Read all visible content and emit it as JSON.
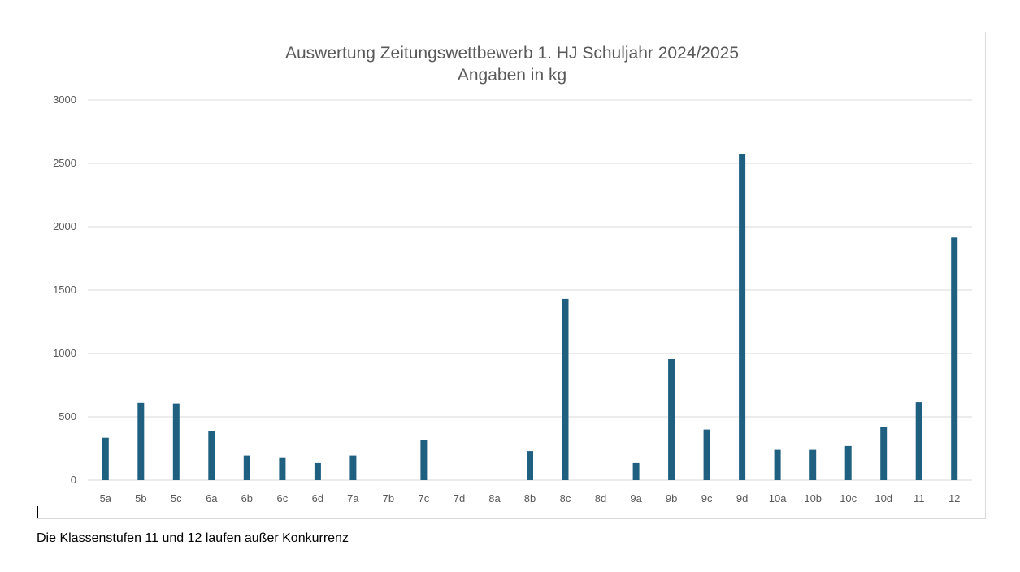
{
  "chart_data": {
    "type": "bar",
    "title": "Auswertung Zeitungswettbewerb  1. HJ Schuljahr 2024/2025",
    "subtitle": "Angaben in kg",
    "categories": [
      "5a",
      "5b",
      "5c",
      "6a",
      "6b",
      "6c",
      "6d",
      "7a",
      "7b",
      "7c",
      "7d",
      "8a",
      "8b",
      "8c",
      "8d",
      "9a",
      "9b",
      "9c",
      "9d",
      "10a",
      "10b",
      "10c",
      "10d",
      "11",
      "12"
    ],
    "values": [
      335,
      610,
      605,
      385,
      195,
      175,
      135,
      195,
      0,
      320,
      0,
      0,
      230,
      1430,
      0,
      135,
      955,
      400,
      2575,
      240,
      240,
      270,
      420,
      615,
      1915
    ],
    "ylim": [
      0,
      3000
    ],
    "yticks": [
      0,
      500,
      1000,
      1500,
      2000,
      2500,
      3000
    ],
    "grid": true,
    "legend": "none",
    "bar_color": "#1f5f7f",
    "xlabel": "",
    "ylabel": ""
  },
  "footnote": "Die Klassenstufen 11 und 12 laufen außer Konkurrenz"
}
